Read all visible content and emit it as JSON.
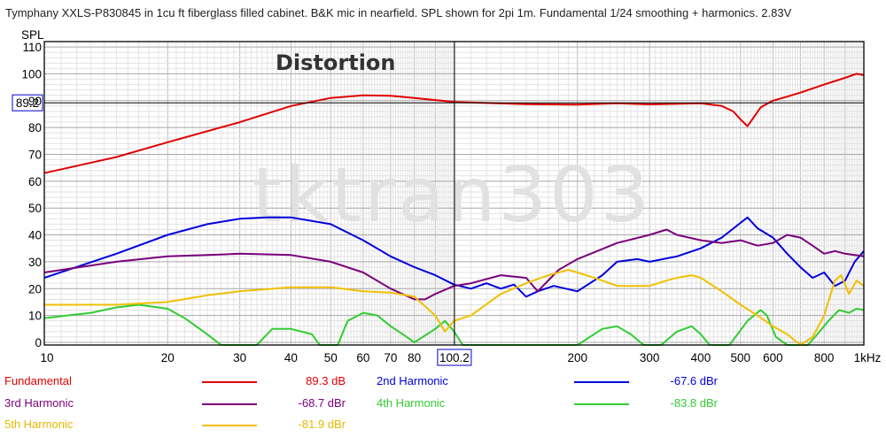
{
  "chart_data": {
    "type": "line",
    "title": "Tymphany XXLS-P830845 in 1cu ft fiberglass filled cabinet. B&K mic in nearfield. SPL shown for 2pi 1m. Fundamental 1/24 smoothing + harmonics. 2.83V",
    "annotation": "Distortion",
    "watermark": "tktran303",
    "ylabel": "SPL",
    "xlabel": "",
    "x_scale": "log",
    "xlim": [
      10,
      1000
    ],
    "ylim": [
      -1,
      112
    ],
    "grid": true,
    "x_ticks": [
      {
        "v": 10,
        "t": "10"
      },
      {
        "v": 20,
        "t": "20"
      },
      {
        "v": 30,
        "t": "30"
      },
      {
        "v": 40,
        "t": "40"
      },
      {
        "v": 50,
        "t": "50"
      },
      {
        "v": 60,
        "t": "60"
      },
      {
        "v": 70,
        "t": "70"
      },
      {
        "v": 80,
        "t": "80"
      },
      {
        "v": 200,
        "t": "200"
      },
      {
        "v": 300,
        "t": "300"
      },
      {
        "v": 400,
        "t": "400"
      },
      {
        "v": 500,
        "t": "500"
      },
      {
        "v": 600,
        "t": "600"
      },
      {
        "v": 800,
        "t": "800"
      },
      {
        "v": 1000,
        "t": "1kHz"
      }
    ],
    "y_ticks": [
      0,
      10,
      20,
      30,
      40,
      50,
      60,
      70,
      80,
      90,
      100,
      110
    ],
    "cursor": {
      "x": 100.2,
      "x_label": "100.2",
      "y": 89.2,
      "y_label": "89.2"
    },
    "series": [
      {
        "name": "Fundamental",
        "color": "#e00000",
        "reading": "89.3 dB",
        "points": [
          [
            10,
            63
          ],
          [
            15,
            69
          ],
          [
            20,
            74.5
          ],
          [
            30,
            82
          ],
          [
            40,
            88
          ],
          [
            50,
            91
          ],
          [
            60,
            92
          ],
          [
            70,
            91.8
          ],
          [
            80,
            91
          ],
          [
            100,
            89.5
          ],
          [
            150,
            88.7
          ],
          [
            200,
            88.5
          ],
          [
            250,
            89
          ],
          [
            300,
            88.6
          ],
          [
            400,
            89
          ],
          [
            450,
            88
          ],
          [
            480,
            86
          ],
          [
            500,
            83
          ],
          [
            520,
            80.5
          ],
          [
            540,
            84
          ],
          [
            560,
            87.5
          ],
          [
            600,
            90
          ],
          [
            650,
            91.5
          ],
          [
            700,
            93
          ],
          [
            800,
            96
          ],
          [
            900,
            98.5
          ],
          [
            960,
            100
          ],
          [
            1000,
            99.5
          ]
        ]
      },
      {
        "name": "2nd Harmonic",
        "color": "#0000dd",
        "reading": "-67.6 dBr",
        "points": [
          [
            10,
            24
          ],
          [
            15,
            33
          ],
          [
            20,
            40
          ],
          [
            25,
            44
          ],
          [
            30,
            46
          ],
          [
            35,
            46.5
          ],
          [
            40,
            46.5
          ],
          [
            50,
            44
          ],
          [
            60,
            38
          ],
          [
            70,
            32
          ],
          [
            80,
            28
          ],
          [
            90,
            25
          ],
          [
            100,
            21.5
          ],
          [
            110,
            20
          ],
          [
            120,
            22
          ],
          [
            130,
            20
          ],
          [
            140,
            21.5
          ],
          [
            150,
            17
          ],
          [
            160,
            19
          ],
          [
            175,
            21
          ],
          [
            200,
            19
          ],
          [
            230,
            25
          ],
          [
            250,
            30
          ],
          [
            280,
            31
          ],
          [
            300,
            30
          ],
          [
            350,
            32
          ],
          [
            400,
            35
          ],
          [
            450,
            39
          ],
          [
            500,
            44.5
          ],
          [
            520,
            46.5
          ],
          [
            550,
            42.5
          ],
          [
            600,
            39
          ],
          [
            650,
            33
          ],
          [
            700,
            28
          ],
          [
            750,
            24
          ],
          [
            800,
            26
          ],
          [
            850,
            21
          ],
          [
            900,
            23
          ],
          [
            950,
            30
          ],
          [
            1000,
            34
          ]
        ]
      },
      {
        "name": "3rd Harmonic",
        "color": "#7a007a",
        "reading": "-68.7 dBr",
        "points": [
          [
            10,
            26
          ],
          [
            15,
            30
          ],
          [
            20,
            32
          ],
          [
            25,
            32.5
          ],
          [
            30,
            33
          ],
          [
            40,
            32.5
          ],
          [
            50,
            30
          ],
          [
            60,
            26
          ],
          [
            70,
            20
          ],
          [
            80,
            16
          ],
          [
            85,
            16
          ],
          [
            90,
            18
          ],
          [
            100,
            21
          ],
          [
            110,
            22
          ],
          [
            130,
            25
          ],
          [
            150,
            24
          ],
          [
            160,
            19
          ],
          [
            180,
            27
          ],
          [
            200,
            31
          ],
          [
            250,
            37
          ],
          [
            300,
            40
          ],
          [
            330,
            42
          ],
          [
            350,
            40
          ],
          [
            400,
            38
          ],
          [
            450,
            37
          ],
          [
            500,
            38
          ],
          [
            550,
            36
          ],
          [
            600,
            37
          ],
          [
            650,
            40
          ],
          [
            700,
            39
          ],
          [
            750,
            36
          ],
          [
            800,
            33
          ],
          [
            850,
            34
          ],
          [
            900,
            33
          ],
          [
            1000,
            32
          ]
        ]
      },
      {
        "name": "4th Harmonic",
        "color": "#33cc33",
        "reading": "-83.8 dBr",
        "points": [
          [
            10,
            9
          ],
          [
            13,
            11
          ],
          [
            15,
            13
          ],
          [
            17,
            14
          ],
          [
            20,
            12.5
          ],
          [
            22,
            9
          ],
          [
            25,
            3
          ],
          [
            27,
            -1
          ],
          [
            33,
            -1
          ],
          [
            36,
            5
          ],
          [
            40,
            5
          ],
          [
            45,
            3
          ],
          [
            47,
            -1
          ],
          [
            52,
            -1
          ],
          [
            55,
            8
          ],
          [
            60,
            11
          ],
          [
            65,
            10
          ],
          [
            70,
            6
          ],
          [
            75,
            3
          ],
          [
            80,
            0
          ],
          [
            90,
            5
          ],
          [
            95,
            8
          ],
          [
            100,
            4
          ],
          [
            105,
            -1
          ],
          [
            200,
            -1
          ],
          [
            230,
            5
          ],
          [
            250,
            6
          ],
          [
            270,
            3
          ],
          [
            290,
            -1
          ],
          [
            320,
            -1
          ],
          [
            350,
            4
          ],
          [
            380,
            6
          ],
          [
            400,
            3
          ],
          [
            420,
            -1
          ],
          [
            470,
            -1
          ],
          [
            520,
            8
          ],
          [
            560,
            12
          ],
          [
            580,
            10
          ],
          [
            610,
            2
          ],
          [
            650,
            -1
          ],
          [
            730,
            -1
          ],
          [
            770,
            3
          ],
          [
            820,
            8
          ],
          [
            870,
            12
          ],
          [
            920,
            11
          ],
          [
            960,
            12.5
          ],
          [
            1000,
            12
          ]
        ]
      },
      {
        "name": "5th Harmonic",
        "color": "#f0c000",
        "reading": "-81.9 dBr",
        "points": [
          [
            10,
            14
          ],
          [
            15,
            14
          ],
          [
            20,
            15
          ],
          [
            25,
            17.5
          ],
          [
            30,
            19
          ],
          [
            40,
            20.5
          ],
          [
            50,
            20.5
          ],
          [
            60,
            19
          ],
          [
            70,
            18.5
          ],
          [
            80,
            17
          ],
          [
            90,
            10
          ],
          [
            95,
            4
          ],
          [
            100,
            8
          ],
          [
            110,
            10
          ],
          [
            130,
            18
          ],
          [
            150,
            22
          ],
          [
            170,
            25
          ],
          [
            190,
            27
          ],
          [
            200,
            26
          ],
          [
            220,
            24
          ],
          [
            250,
            21
          ],
          [
            280,
            21
          ],
          [
            300,
            21
          ],
          [
            330,
            23
          ],
          [
            350,
            24
          ],
          [
            380,
            25
          ],
          [
            400,
            24
          ],
          [
            450,
            19
          ],
          [
            500,
            14
          ],
          [
            550,
            10
          ],
          [
            600,
            6
          ],
          [
            650,
            3
          ],
          [
            700,
            -1
          ],
          [
            750,
            2
          ],
          [
            800,
            10
          ],
          [
            850,
            23
          ],
          [
            880,
            25
          ],
          [
            920,
            18
          ],
          [
            960,
            23
          ],
          [
            1000,
            21
          ]
        ]
      }
    ]
  }
}
